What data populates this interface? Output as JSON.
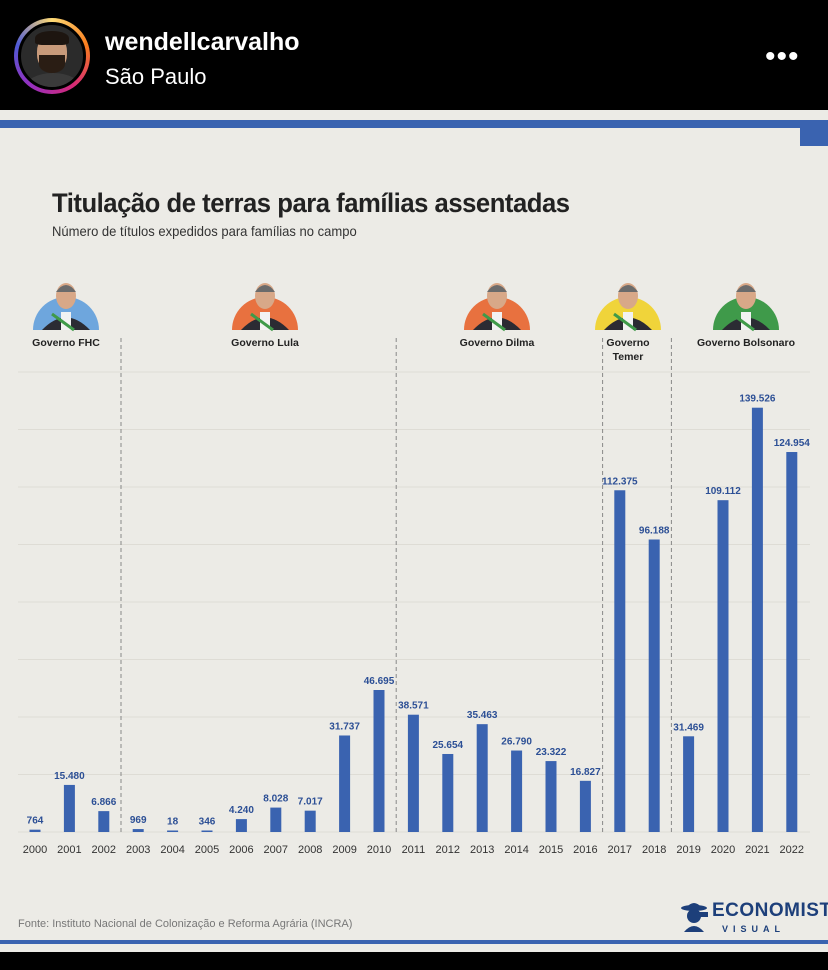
{
  "post": {
    "username": "wendellcarvalho",
    "location": "São Paulo",
    "more_icon": "more-horizontal-icon"
  },
  "chart_data": {
    "type": "bar",
    "title": "Titulação de terras para famílias assentadas",
    "subtitle": "Número de títulos expedidos para famílias no campo",
    "categories": [
      "2000",
      "2001",
      "2002",
      "2003",
      "2004",
      "2005",
      "2006",
      "2007",
      "2008",
      "2009",
      "2010",
      "2011",
      "2012",
      "2013",
      "2014",
      "2015",
      "2016",
      "2017",
      "2018",
      "2019",
      "2020",
      "2021",
      "2022"
    ],
    "values": [
      764,
      15480,
      6866,
      969,
      18,
      346,
      4240,
      8028,
      7017,
      31737,
      46695,
      38571,
      25654,
      35463,
      26790,
      23322,
      16827,
      112375,
      96188,
      31469,
      109112,
      139526,
      124954
    ],
    "value_labels": [
      "764",
      "15.480",
      "6.866",
      "969",
      "18",
      "346",
      "4.240",
      "8.028",
      "7.017",
      "31.737",
      "46.695",
      "38.571",
      "25.654",
      "35.463",
      "26.790",
      "23.322",
      "16.827",
      "112.375",
      "96.188",
      "31.469",
      "109.112",
      "139.526",
      "124.954"
    ],
    "governments": [
      {
        "label": "Governo FHC",
        "color": "#6ea6dd"
      },
      {
        "label": "Governo Lula",
        "color": "#e8713f"
      },
      {
        "label": "Governo Dilma",
        "color": "#e8713f"
      },
      {
        "label": "Governo Temer",
        "color": "#f0d43a"
      },
      {
        "label": "Governo Bolsonaro",
        "color": "#3f9a4a"
      }
    ],
    "bar_color": "#3a63b0",
    "grid": true,
    "source": "Fonte: Instituto Nacional de Colonização e Reforma Agrária (INCRA)"
  },
  "brand": {
    "line1": "ECONOMISTA",
    "line2": "VISUAL"
  }
}
